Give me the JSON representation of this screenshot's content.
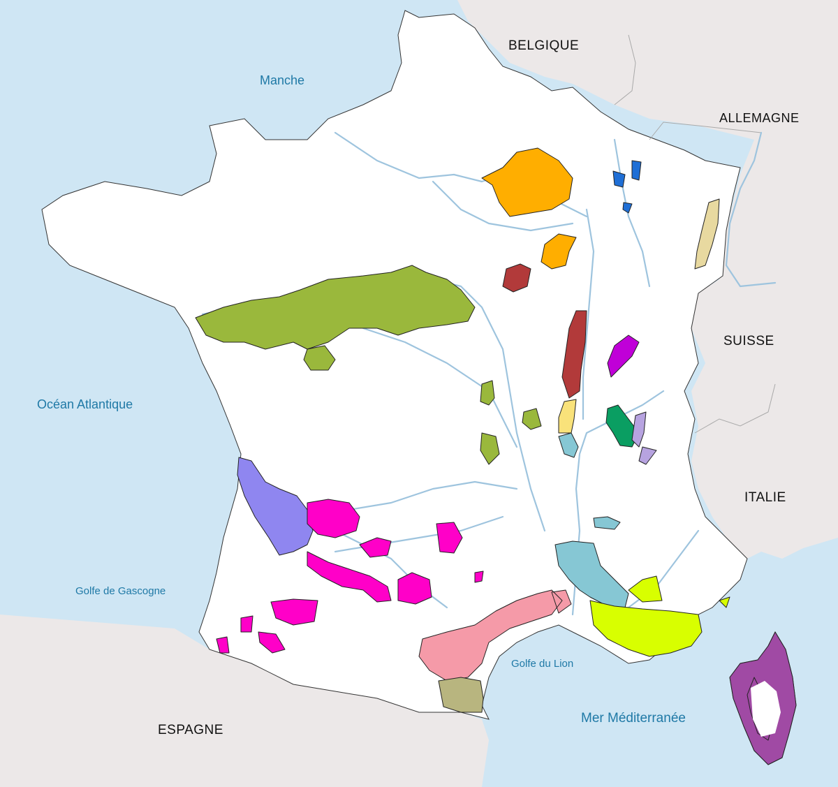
{
  "labels": {
    "manche": "Manche",
    "belgique": "BELGIQUE",
    "allemagne": "ALLEMAGNE",
    "suisse": "SUISSE",
    "italie": "ITALIE",
    "espagne": "ESPAGNE",
    "ocean_atlantique": "Océan Atlantique",
    "golfe_gascogne": "Golfe de Gascogne",
    "golfe_lion": "Golfe du Lion",
    "mer_mediterranee": "Mer Méditerranée"
  },
  "colors": {
    "sea": "#cfe6f4",
    "land_neighbors": "#ece8e8",
    "france": "#ffffff",
    "river": "#9ec4de",
    "champagne": "#ffae00",
    "alsace": "#e8d9a0",
    "lorraine": "#1f6fd6",
    "bourgogne": "#b23a3a",
    "beaujolais": "#f9e27a",
    "jura": "#c000d8",
    "savoie": "#0a9e62",
    "bugey": "#b7a3e0",
    "val_de_loire": "#9ab83c",
    "rhone": "#86c7d4",
    "provence": "#d8ff00",
    "languedoc": "#f59aa8",
    "roussillon": "#b8b57f",
    "bordeaux": "#8f86f0",
    "sud_ouest": "#ff00c8",
    "corse": "#a04aa4"
  }
}
